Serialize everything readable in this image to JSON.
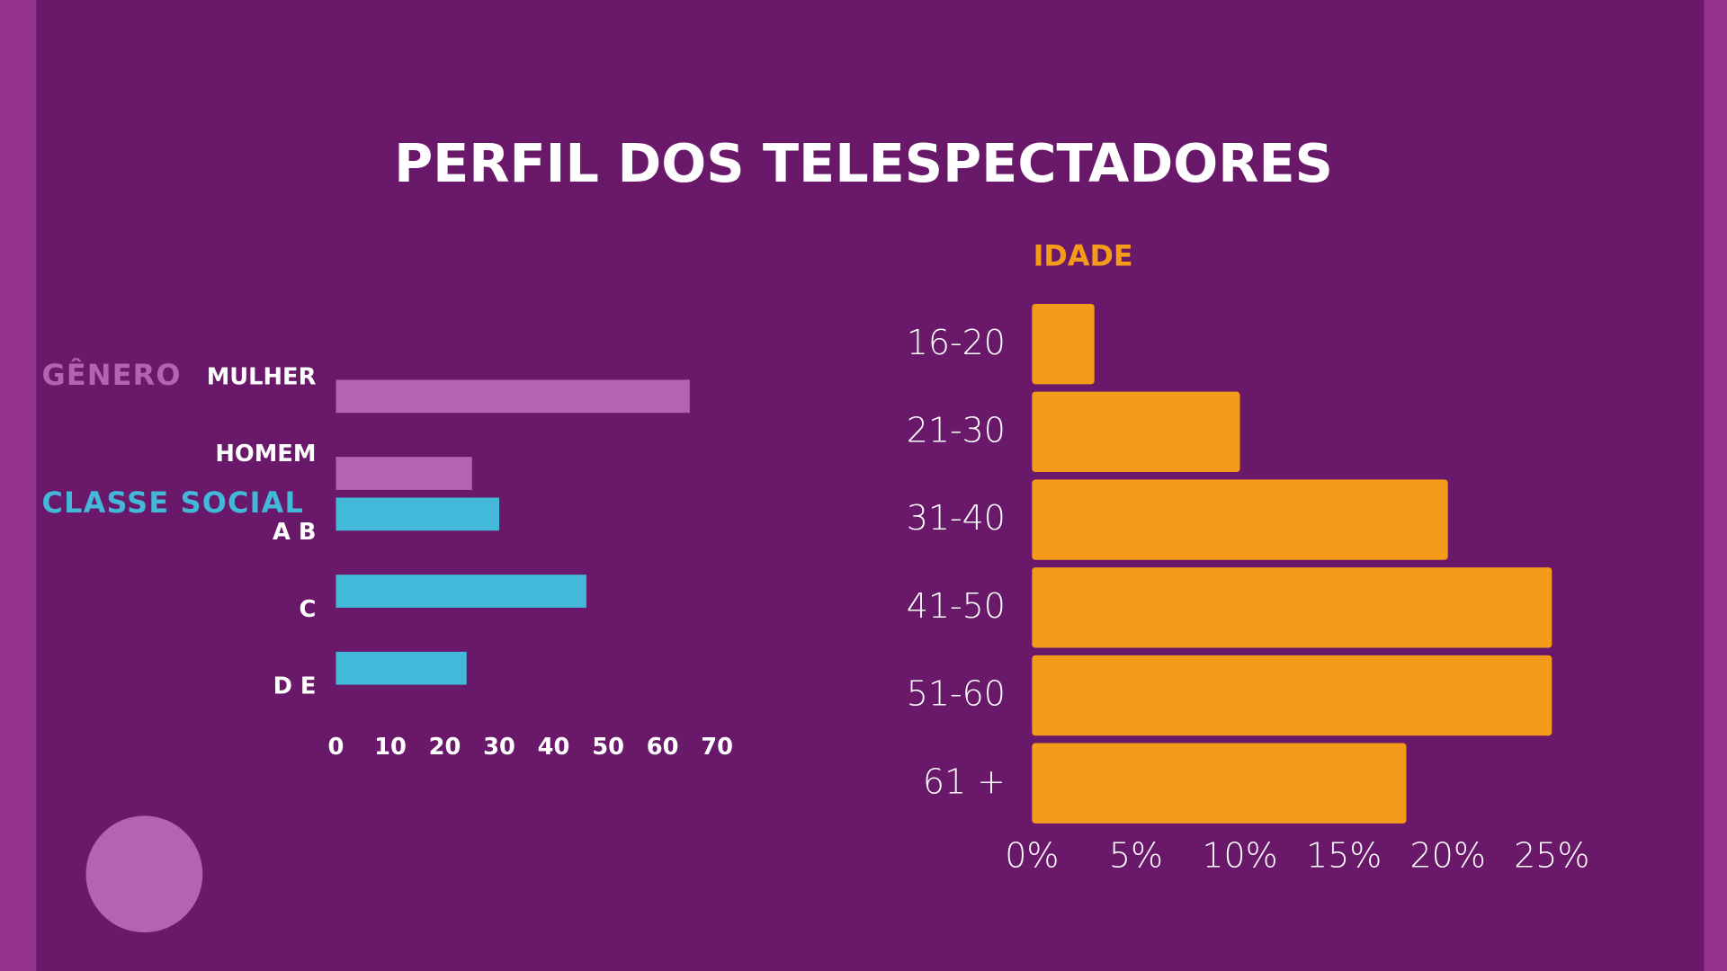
{
  "title": "PERFIL DOS TELESPECTADORES",
  "chart_data": [
    {
      "type": "bar",
      "orientation": "horizontal",
      "categories": [
        "MULHER",
        "HOMEM",
        "A B",
        "C",
        "D E"
      ],
      "series": [
        {
          "name": "GÊNERO",
          "color": "#b463b4",
          "values": [
            65,
            25,
            null,
            null,
            null
          ]
        },
        {
          "name": "CLASSE SOCIAL",
          "color": "#42b9d9",
          "values": [
            null,
            null,
            30,
            46,
            24
          ]
        }
      ],
      "xlim": [
        0,
        70
      ],
      "xticks": [
        0,
        10,
        20,
        30,
        40,
        50,
        60,
        70
      ]
    },
    {
      "type": "bar",
      "orientation": "horizontal",
      "title": "IDADE",
      "color": "#f59b1a",
      "categories": [
        "16-20",
        "21-30",
        "31-40",
        "41-50",
        "51-60",
        "61 +"
      ],
      "values": [
        3,
        10,
        20,
        25,
        25,
        18
      ],
      "xlim": [
        0,
        25
      ],
      "xticks": [
        {
          "value": 0,
          "label": "0%"
        },
        {
          "value": 5,
          "label": "5%"
        },
        {
          "value": 10,
          "label": "10%"
        },
        {
          "value": 15,
          "label": "15%"
        },
        {
          "value": 20,
          "label": "20%"
        },
        {
          "value": 25,
          "label": "25%"
        }
      ]
    }
  ]
}
